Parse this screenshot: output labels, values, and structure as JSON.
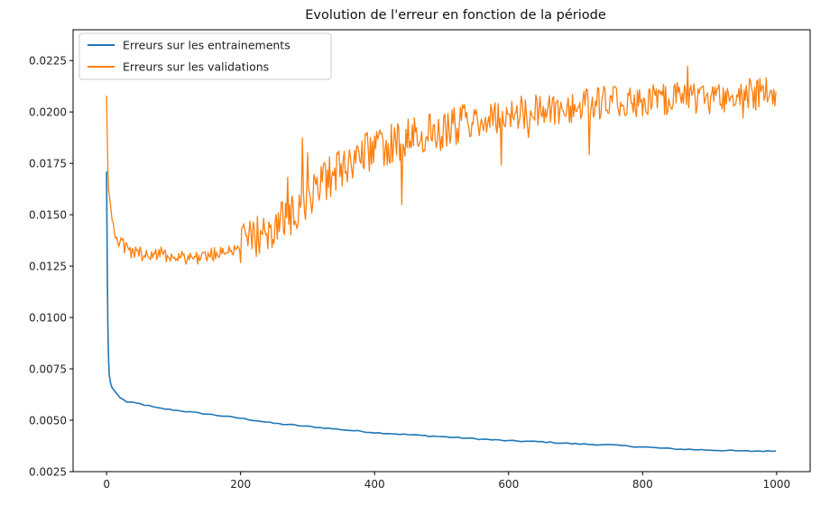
{
  "chart_data": {
    "type": "line",
    "title": "Evolution de l'erreur en fonction de la période",
    "xlabel": "",
    "ylabel": "",
    "xlim": [
      -50,
      1050
    ],
    "ylim": [
      0.0025,
      0.024
    ],
    "xticks": [
      0,
      200,
      400,
      600,
      800,
      1000
    ],
    "xtick_labels": [
      "0",
      "200",
      "400",
      "600",
      "800",
      "1000"
    ],
    "yticks": [
      0.0025,
      0.005,
      0.0075,
      0.01,
      0.0125,
      0.015,
      0.0175,
      0.02,
      0.0225
    ],
    "ytick_labels": [
      "0.0025",
      "0.0050",
      "0.0075",
      "0.0100",
      "0.0125",
      "0.0150",
      "0.0175",
      "0.0200",
      "0.0225"
    ],
    "grid": false,
    "legend": "upper-left",
    "series": [
      {
        "name": "Erreurs sur les entrainements",
        "color": "#1f77b4",
        "x": [
          0,
          1,
          2,
          3,
          4,
          6,
          8,
          10,
          15,
          20,
          30,
          40,
          50,
          75,
          100,
          150,
          200,
          230,
          250,
          300,
          350,
          400,
          450,
          500,
          550,
          600,
          650,
          700,
          750,
          800,
          850,
          900,
          950,
          999
        ],
        "y": [
          0.0171,
          0.0125,
          0.0095,
          0.0079,
          0.0072,
          0.0068,
          0.0066,
          0.0065,
          0.0063,
          0.0061,
          0.0059,
          0.00585,
          0.0058,
          0.0056,
          0.0055,
          0.0053,
          0.0051,
          0.00495,
          0.00485,
          0.0047,
          0.00455,
          0.0044,
          0.0043,
          0.0042,
          0.0041,
          0.004,
          0.00395,
          0.00385,
          0.0038,
          0.0037,
          0.0036,
          0.00355,
          0.0035,
          0.0035
        ]
      },
      {
        "name": "Erreurs sur les validations",
        "color": "#ff7f0e",
        "x": [
          0,
          1,
          2,
          3,
          5,
          7,
          10,
          15,
          20,
          30,
          40,
          50,
          75,
          100,
          125,
          150,
          175,
          200,
          225,
          250,
          275,
          300,
          325,
          350,
          375,
          400,
          425,
          450,
          475,
          500,
          525,
          550,
          575,
          600,
          625,
          650,
          675,
          700,
          725,
          750,
          775,
          800,
          825,
          850,
          875,
          900,
          925,
          950,
          975,
          999
        ],
        "y": [
          0.0208,
          0.0188,
          0.0172,
          0.0162,
          0.0154,
          0.015,
          0.0146,
          0.014,
          0.0136,
          0.0133,
          0.0132,
          0.0131,
          0.0131,
          0.013,
          0.0129,
          0.013,
          0.0132,
          0.0135,
          0.014,
          0.0144,
          0.015,
          0.0158,
          0.0166,
          0.0173,
          0.0178,
          0.0182,
          0.0185,
          0.0187,
          0.0189,
          0.0191,
          0.0194,
          0.0196,
          0.0197,
          0.0199,
          0.02,
          0.0201,
          0.0202,
          0.0203,
          0.0204,
          0.0205,
          0.0205,
          0.0206,
          0.0206,
          0.0207,
          0.0207,
          0.0207,
          0.0208,
          0.0208,
          0.0209,
          0.021
        ]
      }
    ]
  }
}
